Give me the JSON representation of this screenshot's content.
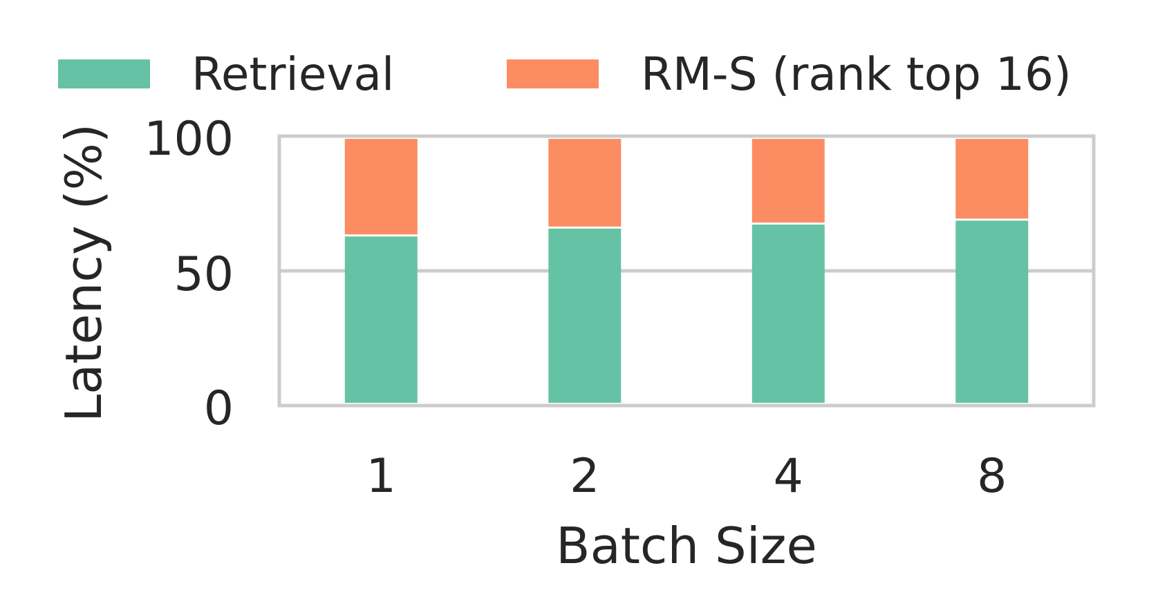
{
  "chart_data": {
    "type": "bar",
    "stacked": true,
    "xlabel": "Batch Size",
    "ylabel": "Latency (%)",
    "categories": [
      "1",
      "2",
      "4",
      "8"
    ],
    "series": [
      {
        "name": "Retrieval",
        "color": "#66c2a5",
        "values": [
          63,
          66,
          67.5,
          69
        ]
      },
      {
        "name": "RM-S (rank top 16)",
        "color": "#fc8d62",
        "values": [
          37,
          34,
          32.5,
          31
        ]
      }
    ],
    "ylim": [
      0,
      100
    ],
    "yticks": [
      "0",
      "50",
      "100"
    ],
    "grid": true,
    "legend_position": "top"
  }
}
